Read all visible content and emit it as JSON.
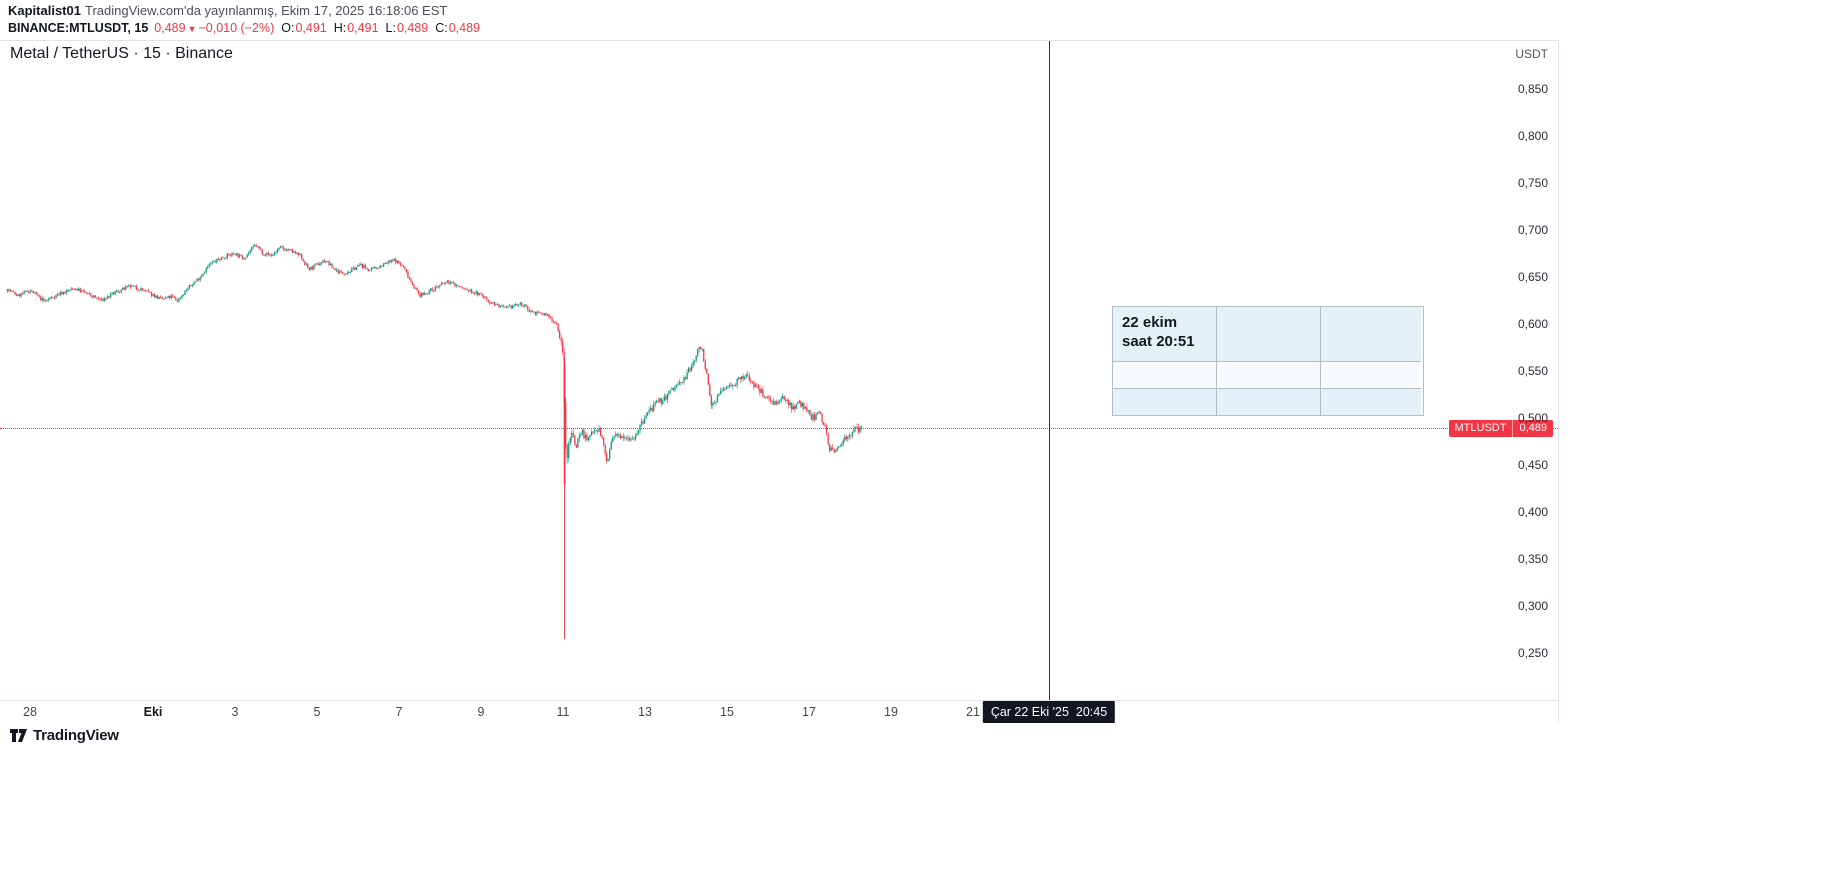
{
  "header": {
    "author": "Kapitalist01",
    "published": "TradingView.com'da yayınlanmış, Ekim 17, 2025 16:18:06 EST",
    "symbol": "BINANCE:MTLUSDT, 15",
    "last": "0,489",
    "dir_icon": "▼",
    "change": "−0,010 (−2%)",
    "ohlc": [
      {
        "label": "O:",
        "value": "0,491"
      },
      {
        "label": "H:",
        "value": "0,491"
      },
      {
        "label": "L:",
        "value": "0,489"
      },
      {
        "label": "C:",
        "value": "0,489"
      }
    ]
  },
  "chart": {
    "title": "Metal / TetherUS · 15 · Binance",
    "axis_unit": "USDT",
    "price_tag": {
      "symbol": "MTLUSDT",
      "value": "0,489"
    },
    "crosshair_time": "Çar 22 Eki '25  20:45",
    "annotation": {
      "line1": "22 ekim",
      "line2": "saat 20:51"
    }
  },
  "footer": {
    "brand": "TradingView"
  },
  "colors": {
    "up": "#089981",
    "down": "#f23645",
    "text": "#131722",
    "muted": "#787b86",
    "border": "#e0e3eb",
    "annotation_bg": "#e4f1f9"
  },
  "chart_data": {
    "type": "candlestick",
    "symbol": "BINANCE:MTLUSDT",
    "interval_minutes": 15,
    "unit": "USDT",
    "title": "Metal / TetherUS · 15 · Binance",
    "ylim": [
      0.25,
      0.85
    ],
    "y_ticks": [
      0.85,
      0.8,
      0.75,
      0.7,
      0.65,
      0.6,
      0.55,
      0.5,
      0.45,
      0.4,
      0.35,
      0.3,
      0.25
    ],
    "x_ticks": [
      {
        "d": 0,
        "label": "28",
        "bold": false
      },
      {
        "d": 3,
        "label": "Eki",
        "bold": true
      },
      {
        "d": 5,
        "label": "3",
        "bold": false
      },
      {
        "d": 7,
        "label": "5",
        "bold": false
      },
      {
        "d": 9,
        "label": "7",
        "bold": false
      },
      {
        "d": 11,
        "label": "9",
        "bold": false
      },
      {
        "d": 13,
        "label": "11",
        "bold": false
      },
      {
        "d": 15,
        "label": "13",
        "bold": false
      },
      {
        "d": 17,
        "label": "15",
        "bold": false
      },
      {
        "d": 19,
        "label": "17",
        "bold": false
      },
      {
        "d": 21,
        "label": "19",
        "bold": false
      },
      {
        "d": 23,
        "label": "21",
        "bold": false
      }
    ],
    "x_axis_start_date": "2025-09-28",
    "last_price": 0.489,
    "crosshair_day": 24.86,
    "data_end_day": 20.3,
    "crash_candle": {
      "day": 13.04,
      "open": 0.555,
      "high": 0.565,
      "low": 0.265,
      "close": 0.43
    },
    "price_path": [
      [
        -0.55,
        0.637
      ],
      [
        -0.3,
        0.63
      ],
      [
        -0.1,
        0.634
      ],
      [
        0,
        0.636
      ],
      [
        0.35,
        0.624
      ],
      [
        0.7,
        0.632
      ],
      [
        1.1,
        0.638
      ],
      [
        1.5,
        0.63
      ],
      [
        1.75,
        0.625
      ],
      [
        2.1,
        0.634
      ],
      [
        2.45,
        0.64
      ],
      [
        2.7,
        0.637
      ],
      [
        3.0,
        0.631
      ],
      [
        3.2,
        0.626
      ],
      [
        3.45,
        0.629
      ],
      [
        3.6,
        0.625
      ],
      [
        3.85,
        0.638
      ],
      [
        4.1,
        0.648
      ],
      [
        4.4,
        0.664
      ],
      [
        4.75,
        0.672
      ],
      [
        5.0,
        0.675
      ],
      [
        5.2,
        0.67
      ],
      [
        5.5,
        0.684
      ],
      [
        5.7,
        0.675
      ],
      [
        5.9,
        0.673
      ],
      [
        6.1,
        0.681
      ],
      [
        6.35,
        0.678
      ],
      [
        6.6,
        0.672
      ],
      [
        6.8,
        0.658
      ],
      [
        7.0,
        0.663
      ],
      [
        7.2,
        0.668
      ],
      [
        7.4,
        0.659
      ],
      [
        7.6,
        0.654
      ],
      [
        7.8,
        0.656
      ],
      [
        8.05,
        0.663
      ],
      [
        8.3,
        0.657
      ],
      [
        8.65,
        0.664
      ],
      [
        8.9,
        0.668
      ],
      [
        9.1,
        0.661
      ],
      [
        9.3,
        0.645
      ],
      [
        9.5,
        0.63
      ],
      [
        9.7,
        0.634
      ],
      [
        9.9,
        0.639
      ],
      [
        10.2,
        0.645
      ],
      [
        10.45,
        0.64
      ],
      [
        10.6,
        0.637
      ],
      [
        10.8,
        0.634
      ],
      [
        11.0,
        0.631
      ],
      [
        11.2,
        0.624
      ],
      [
        11.45,
        0.619
      ],
      [
        11.6,
        0.616
      ],
      [
        11.8,
        0.62
      ],
      [
        12.0,
        0.621
      ],
      [
        12.2,
        0.614
      ],
      [
        12.4,
        0.611
      ],
      [
        12.6,
        0.61
      ],
      [
        12.85,
        0.6
      ],
      [
        12.97,
        0.575
      ],
      [
        13.0,
        0.565
      ],
      [
        13.08,
        0.445
      ],
      [
        13.12,
        0.465
      ],
      [
        13.2,
        0.49
      ],
      [
        13.3,
        0.47
      ],
      [
        13.45,
        0.487
      ],
      [
        13.6,
        0.475
      ],
      [
        13.75,
        0.49
      ],
      [
        13.9,
        0.487
      ],
      [
        14.0,
        0.468
      ],
      [
        14.08,
        0.452
      ],
      [
        14.2,
        0.478
      ],
      [
        14.45,
        0.483
      ],
      [
        14.7,
        0.478
      ],
      [
        14.9,
        0.492
      ],
      [
        15.1,
        0.508
      ],
      [
        15.3,
        0.515
      ],
      [
        15.5,
        0.522
      ],
      [
        15.7,
        0.532
      ],
      [
        15.9,
        0.538
      ],
      [
        16.1,
        0.552
      ],
      [
        16.3,
        0.572
      ],
      [
        16.38,
        0.578
      ],
      [
        16.5,
        0.545
      ],
      [
        16.62,
        0.512
      ],
      [
        16.75,
        0.522
      ],
      [
        16.9,
        0.53
      ],
      [
        17.1,
        0.536
      ],
      [
        17.3,
        0.54
      ],
      [
        17.5,
        0.545
      ],
      [
        17.65,
        0.536
      ],
      [
        17.85,
        0.527
      ],
      [
        18.05,
        0.52
      ],
      [
        18.25,
        0.515
      ],
      [
        18.4,
        0.521
      ],
      [
        18.6,
        0.512
      ],
      [
        18.8,
        0.516
      ],
      [
        18.95,
        0.506
      ],
      [
        19.1,
        0.5
      ],
      [
        19.25,
        0.506
      ],
      [
        19.4,
        0.49
      ],
      [
        19.5,
        0.468
      ],
      [
        19.62,
        0.462
      ],
      [
        19.8,
        0.476
      ],
      [
        20.0,
        0.483
      ],
      [
        20.15,
        0.487
      ],
      [
        20.3,
        0.489
      ]
    ]
  }
}
